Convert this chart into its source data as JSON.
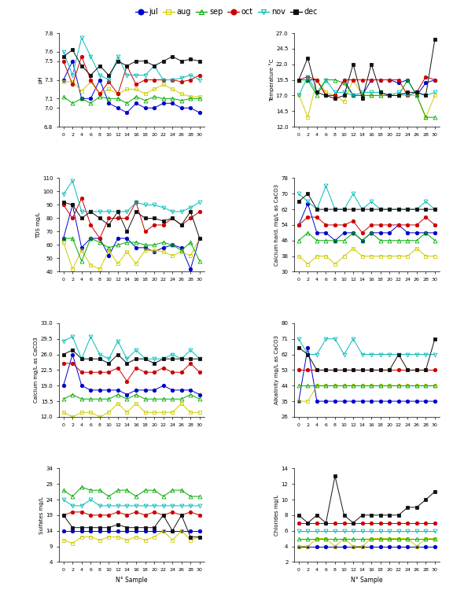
{
  "x": [
    0,
    2,
    4,
    6,
    8,
    10,
    12,
    14,
    16,
    18,
    20,
    22,
    24,
    26,
    28,
    30
  ],
  "pH": {
    "jul": [
      7.3,
      7.5,
      7.1,
      7.1,
      7.3,
      7.05,
      7.0,
      6.95,
      7.05,
      7.0,
      7.0,
      7.05,
      7.05,
      7.0,
      7.0,
      6.95
    ],
    "aug": [
      7.28,
      7.28,
      7.18,
      7.28,
      7.15,
      7.2,
      7.15,
      7.2,
      7.2,
      7.15,
      7.2,
      7.25,
      7.2,
      7.15,
      7.12,
      7.12
    ],
    "sep": [
      7.12,
      7.05,
      7.1,
      7.05,
      7.12,
      7.1,
      7.1,
      7.05,
      7.12,
      7.08,
      7.12,
      7.1,
      7.1,
      7.08,
      7.1,
      7.1
    ],
    "oct": [
      7.5,
      7.25,
      7.55,
      7.3,
      7.15,
      7.28,
      7.15,
      7.45,
      7.25,
      7.3,
      7.3,
      7.3,
      7.3,
      7.28,
      7.3,
      7.35
    ],
    "nov": [
      7.6,
      7.35,
      7.75,
      7.55,
      7.35,
      7.3,
      7.55,
      7.35,
      7.35,
      7.35,
      7.45,
      7.3,
      7.3,
      7.32,
      7.35,
      7.3
    ],
    "dec": [
      7.55,
      7.62,
      7.45,
      7.35,
      7.45,
      7.35,
      7.5,
      7.45,
      7.5,
      7.5,
      7.45,
      7.5,
      7.55,
      7.5,
      7.52,
      7.5
    ],
    "ylim": [
      6.8,
      7.8
    ],
    "yticks": [
      6.8,
      7.0,
      7.1,
      7.3,
      7.5,
      7.6,
      7.8
    ],
    "ylabel": "pH"
  },
  "Temperature": {
    "jul": [
      19.5,
      19.5,
      19.5,
      17.0,
      17.0,
      19.5,
      17.0,
      17.0,
      19.5,
      19.5,
      19.5,
      19.0,
      19.5,
      17.0,
      19.0,
      19.5
    ],
    "aug": [
      17.2,
      13.5,
      19.5,
      17.5,
      17.0,
      16.0,
      19.5,
      17.0,
      17.0,
      17.0,
      17.0,
      17.0,
      17.0,
      17.0,
      13.5,
      17.0
    ],
    "sep": [
      19.5,
      19.5,
      17.0,
      19.5,
      19.5,
      19.0,
      17.0,
      17.0,
      17.0,
      17.0,
      17.0,
      17.0,
      19.5,
      17.0,
      13.5,
      13.5
    ],
    "oct": [
      19.5,
      20.0,
      19.5,
      17.0,
      17.0,
      19.5,
      19.5,
      19.5,
      19.5,
      19.5,
      19.5,
      19.5,
      17.0,
      17.5,
      20.0,
      19.5
    ],
    "nov": [
      17.0,
      20.0,
      17.5,
      19.5,
      17.5,
      17.5,
      17.0,
      17.5,
      17.5,
      17.5,
      17.0,
      17.5,
      17.0,
      17.5,
      17.0,
      17.5
    ],
    "dec": [
      19.5,
      23.0,
      17.5,
      17.0,
      16.5,
      17.0,
      22.0,
      16.5,
      22.0,
      17.5,
      17.0,
      17.0,
      17.5,
      17.5,
      17.0,
      26.0
    ],
    "ylim": [
      12.0,
      27.0
    ],
    "yticks": [
      12.0,
      14.5,
      17.0,
      19.5,
      22.0,
      24.5,
      27.0
    ],
    "ylabel": "Temperature °C"
  },
  "TDS": {
    "jul": [
      65,
      90,
      58,
      65,
      65,
      52,
      65,
      65,
      58,
      58,
      55,
      58,
      60,
      58,
      42,
      65
    ],
    "aug": [
      62,
      42,
      56,
      45,
      42,
      56,
      46,
      55,
      46,
      56,
      56,
      55,
      52,
      55,
      52,
      65
    ],
    "sep": [
      65,
      65,
      48,
      65,
      62,
      58,
      60,
      62,
      62,
      60,
      60,
      62,
      60,
      56,
      62,
      48
    ],
    "oct": [
      90,
      80,
      95,
      75,
      65,
      80,
      80,
      80,
      92,
      70,
      75,
      75,
      80,
      75,
      80,
      85
    ],
    "nov": [
      98,
      108,
      85,
      85,
      85,
      85,
      85,
      85,
      92,
      90,
      90,
      88,
      85,
      85,
      88,
      92
    ],
    "dec": [
      92,
      90,
      80,
      85,
      80,
      75,
      85,
      70,
      85,
      80,
      80,
      78,
      80,
      75,
      85,
      65
    ],
    "ylim": [
      40.0,
      110.0
    ],
    "yticks": [
      40.0,
      50.0,
      60.0,
      70.0,
      80.0,
      90.0,
      100.0,
      110.0
    ],
    "ylabel": "TDS mg/L"
  },
  "CalciumHard": {
    "jul": [
      54,
      65,
      50,
      50,
      46,
      50,
      50,
      46,
      50,
      50,
      50,
      54,
      50,
      50,
      50,
      50
    ],
    "aug": [
      38,
      34,
      38,
      38,
      34,
      38,
      42,
      38,
      38,
      38,
      38,
      38,
      38,
      42,
      38,
      38
    ],
    "sep": [
      46,
      50,
      46,
      46,
      46,
      46,
      50,
      46,
      50,
      46,
      46,
      46,
      46,
      46,
      50,
      46
    ],
    "oct": [
      54,
      58,
      58,
      54,
      54,
      54,
      56,
      50,
      54,
      54,
      54,
      54,
      54,
      54,
      58,
      54
    ],
    "nov": [
      70,
      66,
      62,
      74,
      62,
      62,
      70,
      62,
      66,
      62,
      62,
      62,
      62,
      62,
      66,
      62
    ],
    "dec": [
      66,
      70,
      62,
      62,
      62,
      62,
      62,
      62,
      62,
      62,
      62,
      62,
      62,
      62,
      62,
      62
    ],
    "ylim": [
      30.0,
      78.0
    ],
    "yticks": [
      30.0,
      38.0,
      46.0,
      54.0,
      62.0,
      70.0,
      78.0
    ],
    "ylabel": "Calcium hard. mg/L as CaCO3"
  },
  "Calcium": {
    "jul": [
      19,
      26,
      19,
      18,
      18,
      18,
      18,
      17,
      18,
      18,
      18,
      19,
      18,
      18,
      18,
      17
    ],
    "aug": [
      13,
      12,
      13,
      13,
      12,
      13,
      15,
      13,
      15,
      13,
      13,
      13,
      13,
      15,
      13,
      13
    ],
    "sep": [
      16,
      17,
      16,
      16,
      16,
      16,
      17,
      16,
      17,
      16,
      16,
      16,
      16,
      16,
      17,
      16
    ],
    "oct": [
      24,
      24,
      22,
      22,
      22,
      22,
      23,
      20,
      23,
      22,
      22,
      23,
      22,
      22,
      24,
      22
    ],
    "nov": [
      29,
      30,
      25,
      30,
      26,
      25,
      29,
      25,
      27,
      25,
      25,
      25,
      26,
      25,
      27,
      25
    ],
    "dec": [
      26,
      27,
      25,
      25,
      25,
      24,
      26,
      24,
      25,
      25,
      24,
      25,
      25,
      25,
      25,
      25
    ],
    "ylim": [
      12.0,
      33.0
    ],
    "yticks": [
      12.0,
      15.5,
      19.0,
      22.5,
      26.0,
      29.5,
      33.0
    ],
    "ylabel": "Calcium mg/L as CaCO3"
  },
  "Alkalinity": {
    "jul": [
      35,
      66,
      35,
      35,
      35,
      35,
      35,
      35,
      35,
      35,
      35,
      35,
      35,
      35,
      35,
      35
    ],
    "aug": [
      35,
      35,
      44,
      44,
      44,
      44,
      44,
      44,
      44,
      44,
      44,
      44,
      44,
      44,
      44,
      44
    ],
    "sep": [
      44,
      44,
      44,
      44,
      44,
      44,
      44,
      44,
      44,
      44,
      44,
      44,
      44,
      44,
      44,
      44
    ],
    "oct": [
      53,
      53,
      53,
      53,
      53,
      53,
      53,
      53,
      53,
      53,
      53,
      53,
      53,
      53,
      53,
      53
    ],
    "nov": [
      71,
      62,
      62,
      71,
      71,
      62,
      71,
      62,
      62,
      62,
      62,
      62,
      62,
      62,
      62,
      62
    ],
    "dec": [
      66,
      62,
      53,
      53,
      53,
      53,
      53,
      53,
      53,
      53,
      53,
      62,
      53,
      53,
      53,
      71
    ],
    "ylim": [
      26.0,
      80.0
    ],
    "yticks": [
      26.0,
      35.0,
      44.0,
      53.0,
      62.0,
      71.0,
      80.0
    ],
    "ylabel": "Alkalinity mg/L as CaCO3"
  },
  "Sulfates": {
    "jul": [
      14,
      14,
      14,
      14,
      14,
      14,
      14,
      14,
      14,
      14,
      14,
      14,
      14,
      14,
      14,
      14
    ],
    "aug": [
      11,
      10,
      12,
      12,
      11,
      12,
      12,
      11,
      12,
      11,
      12,
      14,
      11,
      14,
      11,
      12
    ],
    "sep": [
      27,
      25,
      28,
      27,
      27,
      25,
      27,
      27,
      25,
      27,
      27,
      25,
      27,
      27,
      25,
      25
    ],
    "oct": [
      19,
      20,
      20,
      19,
      19,
      19,
      20,
      19,
      20,
      19,
      20,
      19,
      20,
      19,
      20,
      19
    ],
    "nov": [
      24,
      22,
      22,
      24,
      22,
      22,
      22,
      22,
      22,
      22,
      22,
      22,
      22,
      22,
      22,
      22
    ],
    "dec": [
      19,
      15,
      15,
      15,
      15,
      15,
      16,
      15,
      15,
      15,
      15,
      19,
      14,
      19,
      12,
      12
    ],
    "ylim": [
      4.0,
      34.0
    ],
    "yticks": [
      4.0,
      9.0,
      14.0,
      19.0,
      24.0,
      29.0,
      34.0
    ],
    "ylabel": "Sulfates mg/L"
  },
  "Chlorides": {
    "jul": [
      4,
      4,
      4,
      4,
      4,
      4,
      4,
      4,
      4,
      4,
      4,
      4,
      4,
      4,
      4,
      4
    ],
    "aug": [
      4,
      4,
      5,
      5,
      4,
      5,
      4,
      4,
      5,
      5,
      5,
      5,
      5,
      4,
      5,
      5
    ],
    "sep": [
      5,
      5,
      5,
      5,
      5,
      5,
      5,
      5,
      5,
      5,
      5,
      5,
      5,
      5,
      5,
      5
    ],
    "oct": [
      7,
      7,
      7,
      7,
      7,
      7,
      7,
      7,
      7,
      7,
      7,
      7,
      7,
      7,
      7,
      7
    ],
    "nov": [
      6,
      6,
      6,
      6,
      6,
      6,
      6,
      6,
      6,
      6,
      6,
      6,
      6,
      6,
      6,
      6
    ],
    "dec": [
      8,
      7,
      8,
      7,
      13,
      8,
      7,
      8,
      8,
      8,
      8,
      8,
      9,
      9,
      10,
      11
    ],
    "ylim": [
      2.0,
      14.0
    ],
    "yticks": [
      2.0,
      4.0,
      6.0,
      8.0,
      10.0,
      12.0,
      14.0
    ],
    "ylabel": "Chlorides mg/L"
  }
}
